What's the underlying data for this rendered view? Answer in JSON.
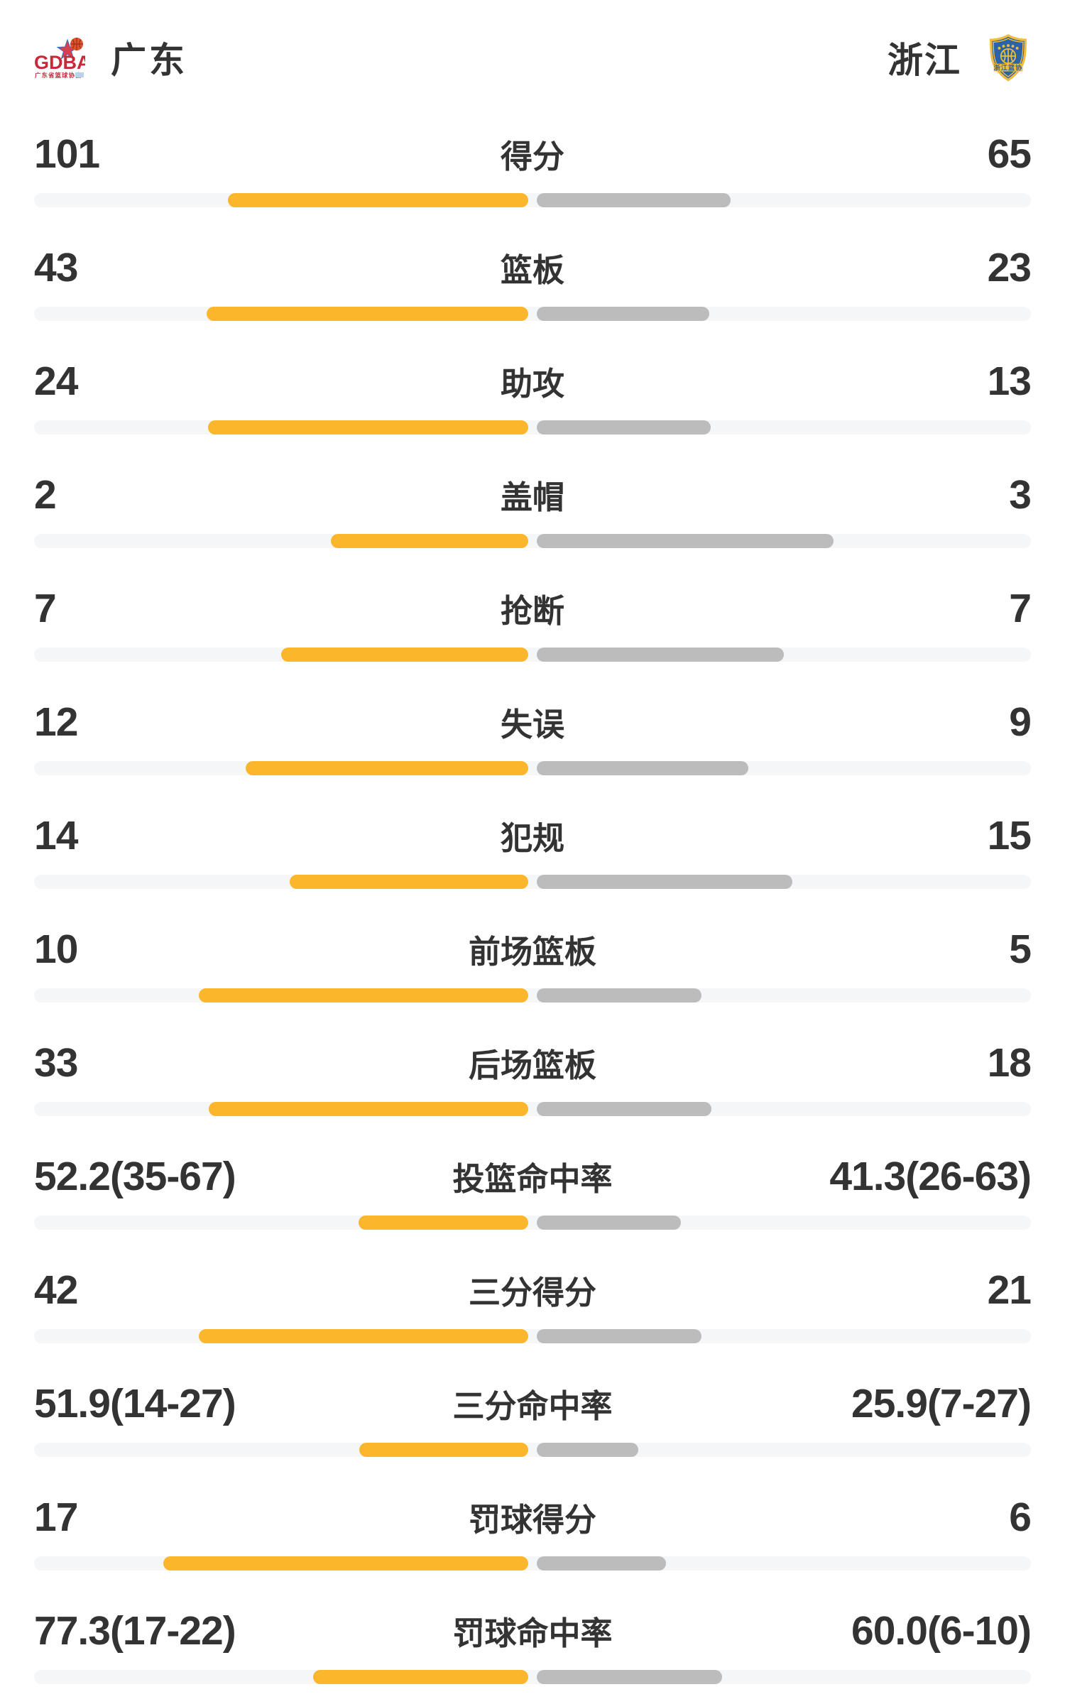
{
  "header": {
    "home": {
      "name": "广东"
    },
    "away": {
      "name": "浙江"
    }
  },
  "logos": {
    "home": {
      "text": "GDBA",
      "caption": "广东省篮球协会"
    },
    "away": {
      "banner": "浙江篮协"
    }
  },
  "colors": {
    "home_bar": "#fbb62c",
    "away_bar": "#bcbcbc",
    "track": "#f5f6f8",
    "text": "#333333",
    "home_logo_red": "#c5293a",
    "home_logo_orange": "#e0532f",
    "home_logo_blue": "#3a6fb5",
    "away_logo_blue": "#2b63a7",
    "away_logo_yellow": "#f0bc41"
  },
  "chart_data": {
    "type": "bar",
    "orientation": "horizontal-diverging",
    "title": "",
    "categories": [
      "得分",
      "篮板",
      "助攻",
      "盖帽",
      "抢断",
      "失误",
      "犯规",
      "前场篮板",
      "后场篮板",
      "投篮命中率",
      "三分得分",
      "三分命中率",
      "罚球得分",
      "罚球命中率"
    ],
    "series": [
      {
        "name": "广东",
        "values": [
          101,
          43,
          24,
          2,
          7,
          12,
          14,
          10,
          33,
          52.2,
          42,
          51.9,
          17,
          77.3
        ]
      },
      {
        "name": "浙江",
        "values": [
          65,
          23,
          13,
          3,
          7,
          9,
          15,
          5,
          18,
          41.3,
          21,
          25.9,
          6,
          60.0
        ]
      }
    ],
    "legend_position": "top",
    "grid": false,
    "note": "count rows fill = value/(home+away) of half track; percent rows fill = pct/(pct+100) of half track"
  },
  "stats": [
    {
      "label": "得分",
      "type": "count",
      "home": {
        "text": "101",
        "value": 101
      },
      "away": {
        "text": "65",
        "value": 65
      }
    },
    {
      "label": "篮板",
      "type": "count",
      "home": {
        "text": "43",
        "value": 43
      },
      "away": {
        "text": "23",
        "value": 23
      }
    },
    {
      "label": "助攻",
      "type": "count",
      "home": {
        "text": "24",
        "value": 24
      },
      "away": {
        "text": "13",
        "value": 13
      }
    },
    {
      "label": "盖帽",
      "type": "count",
      "home": {
        "text": "2",
        "value": 2
      },
      "away": {
        "text": "3",
        "value": 3
      }
    },
    {
      "label": "抢断",
      "type": "count",
      "home": {
        "text": "7",
        "value": 7
      },
      "away": {
        "text": "7",
        "value": 7
      }
    },
    {
      "label": "失误",
      "type": "count",
      "home": {
        "text": "12",
        "value": 12
      },
      "away": {
        "text": "9",
        "value": 9
      }
    },
    {
      "label": "犯规",
      "type": "count",
      "home": {
        "text": "14",
        "value": 14
      },
      "away": {
        "text": "15",
        "value": 15
      }
    },
    {
      "label": "前场篮板",
      "type": "count",
      "home": {
        "text": "10",
        "value": 10
      },
      "away": {
        "text": "5",
        "value": 5
      }
    },
    {
      "label": "后场篮板",
      "type": "count",
      "home": {
        "text": "33",
        "value": 33
      },
      "away": {
        "text": "18",
        "value": 18
      }
    },
    {
      "label": "投篮命中率",
      "type": "percent",
      "home": {
        "text": "52.2(35-67)",
        "value": 52.2
      },
      "away": {
        "text": "41.3(26-63)",
        "value": 41.3
      }
    },
    {
      "label": "三分得分",
      "type": "count",
      "home": {
        "text": "42",
        "value": 42
      },
      "away": {
        "text": "21",
        "value": 21
      }
    },
    {
      "label": "三分命中率",
      "type": "percent",
      "home": {
        "text": "51.9(14-27)",
        "value": 51.9
      },
      "away": {
        "text": "25.9(7-27)",
        "value": 25.9
      }
    },
    {
      "label": "罚球得分",
      "type": "count",
      "home": {
        "text": "17",
        "value": 17
      },
      "away": {
        "text": "6",
        "value": 6
      }
    },
    {
      "label": "罚球命中率",
      "type": "percent",
      "home": {
        "text": "77.3(17-22)",
        "value": 77.3
      },
      "away": {
        "text": "60.0(6-10)",
        "value": 60.0
      }
    }
  ]
}
